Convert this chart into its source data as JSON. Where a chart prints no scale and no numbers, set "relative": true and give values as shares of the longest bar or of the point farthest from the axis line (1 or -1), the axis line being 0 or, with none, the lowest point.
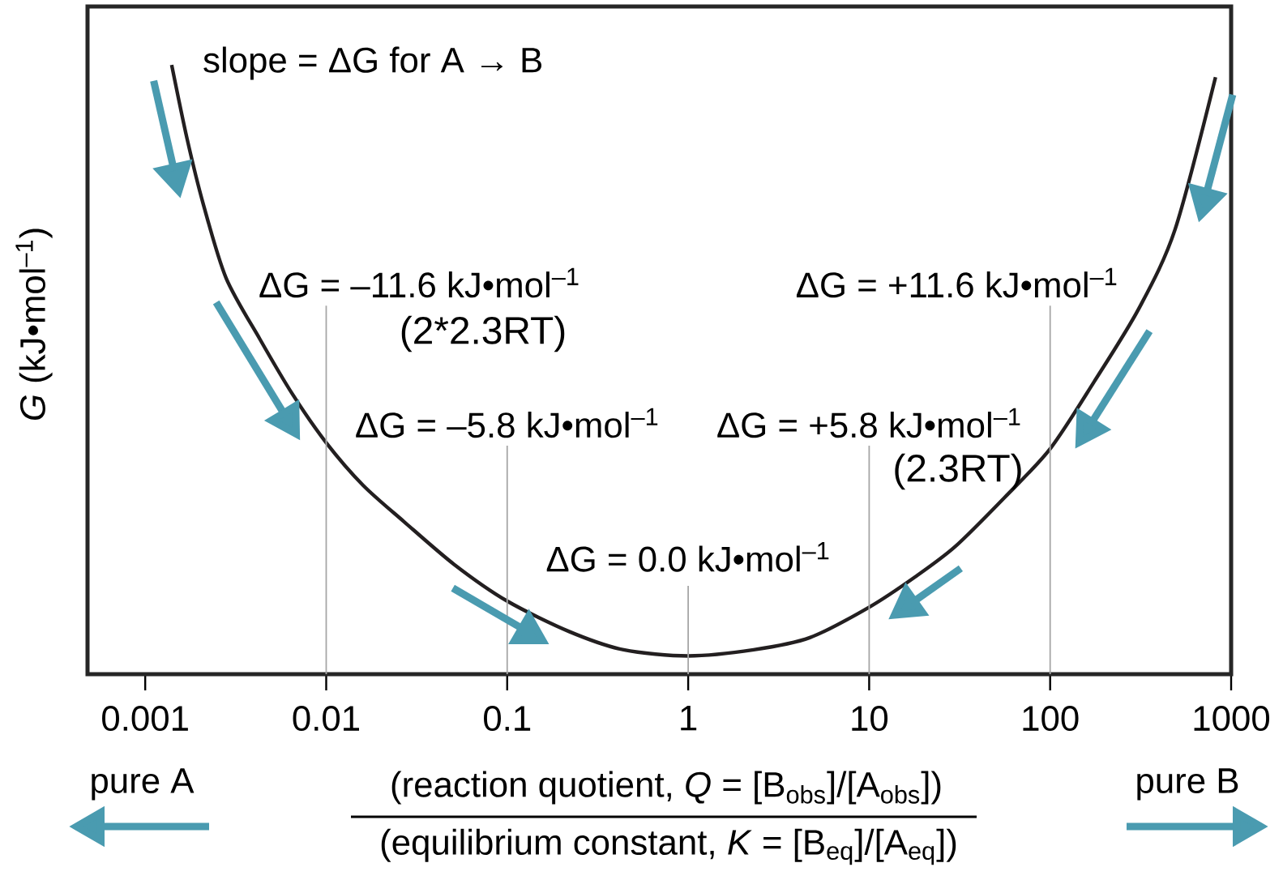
{
  "chart_data": {
    "type": "line",
    "relative": true,
    "log": "x",
    "marker": "none",
    "line_style": "solid",
    "xlabel": "(reaction quotient, *Q* = [B$_{obs}$]/[A$_{obs}$])",
    "ylabel": "*G* (kJ•mol$^{–1}$)",
    "xlim": [
      0.00048,
      1000
    ],
    "xticks": [
      0.001,
      0.01,
      0.1,
      1,
      10,
      100,
      1000
    ],
    "x": [
      0.0014,
      0.0017,
      0.0021,
      0.0028,
      0.0043,
      0.0065,
      0.01,
      0.016,
      0.027,
      0.051,
      0.1,
      0.22,
      0.44,
      1,
      2.3,
      4.7,
      10,
      18,
      30,
      56,
      100,
      175,
      309,
      490,
      820
    ],
    "series": [
      {
        "color": "#231f20",
        "values": [
          1.0,
          0.88,
          0.77,
          0.65,
          0.55,
          0.46,
          0.38,
          0.31,
          0.25,
          0.18,
          0.12,
          0.07,
          0.04,
          0.03,
          0.04,
          0.06,
          0.11,
          0.16,
          0.21,
          0.29,
          0.37,
          0.48,
          0.6,
          0.73,
          0.98
        ]
      }
    ],
    "ref_lines": [
      {
        "axis": "x",
        "value": 0.01,
        "color": "#a6a6a6"
      },
      {
        "axis": "x",
        "value": 0.1,
        "color": "#a6a6a6"
      },
      {
        "axis": "x",
        "value": 1,
        "color": "#a6a6a6"
      },
      {
        "axis": "x",
        "value": 10,
        "color": "#a6a6a6"
      },
      {
        "axis": "x",
        "value": 100,
        "color": "#a6a6a6"
      }
    ],
    "annotations": [
      {
        "text": "ΔG = –11.6 kJ•mol$^{–1}$",
        "x": 0.01,
        "y": 0.6
      },
      {
        "text": "ΔG = –5.8 kJ•mol$^{–1}$",
        "x": 0.1,
        "y": 0.37
      },
      {
        "text": "ΔG = 0.0 kJ•mol$^{–1}$",
        "x": 1,
        "y": 0.15
      },
      {
        "text": "ΔG = +5.8 kJ•mol$^{–1}$",
        "x": 10,
        "y": 0.37
      },
      {
        "text": "ΔG = +11.6 kJ•mol$^{–1}$",
        "x": 100,
        "y": 0.6
      },
      "slope = ΔG for A → B",
      "(2*2.3RT)",
      "(2.3RT)",
      "pure A",
      "pure B",
      "(equilibrium constant, *K* = [B$_{eq}$]/[A$_{eq}$])"
    ]
  }
}
